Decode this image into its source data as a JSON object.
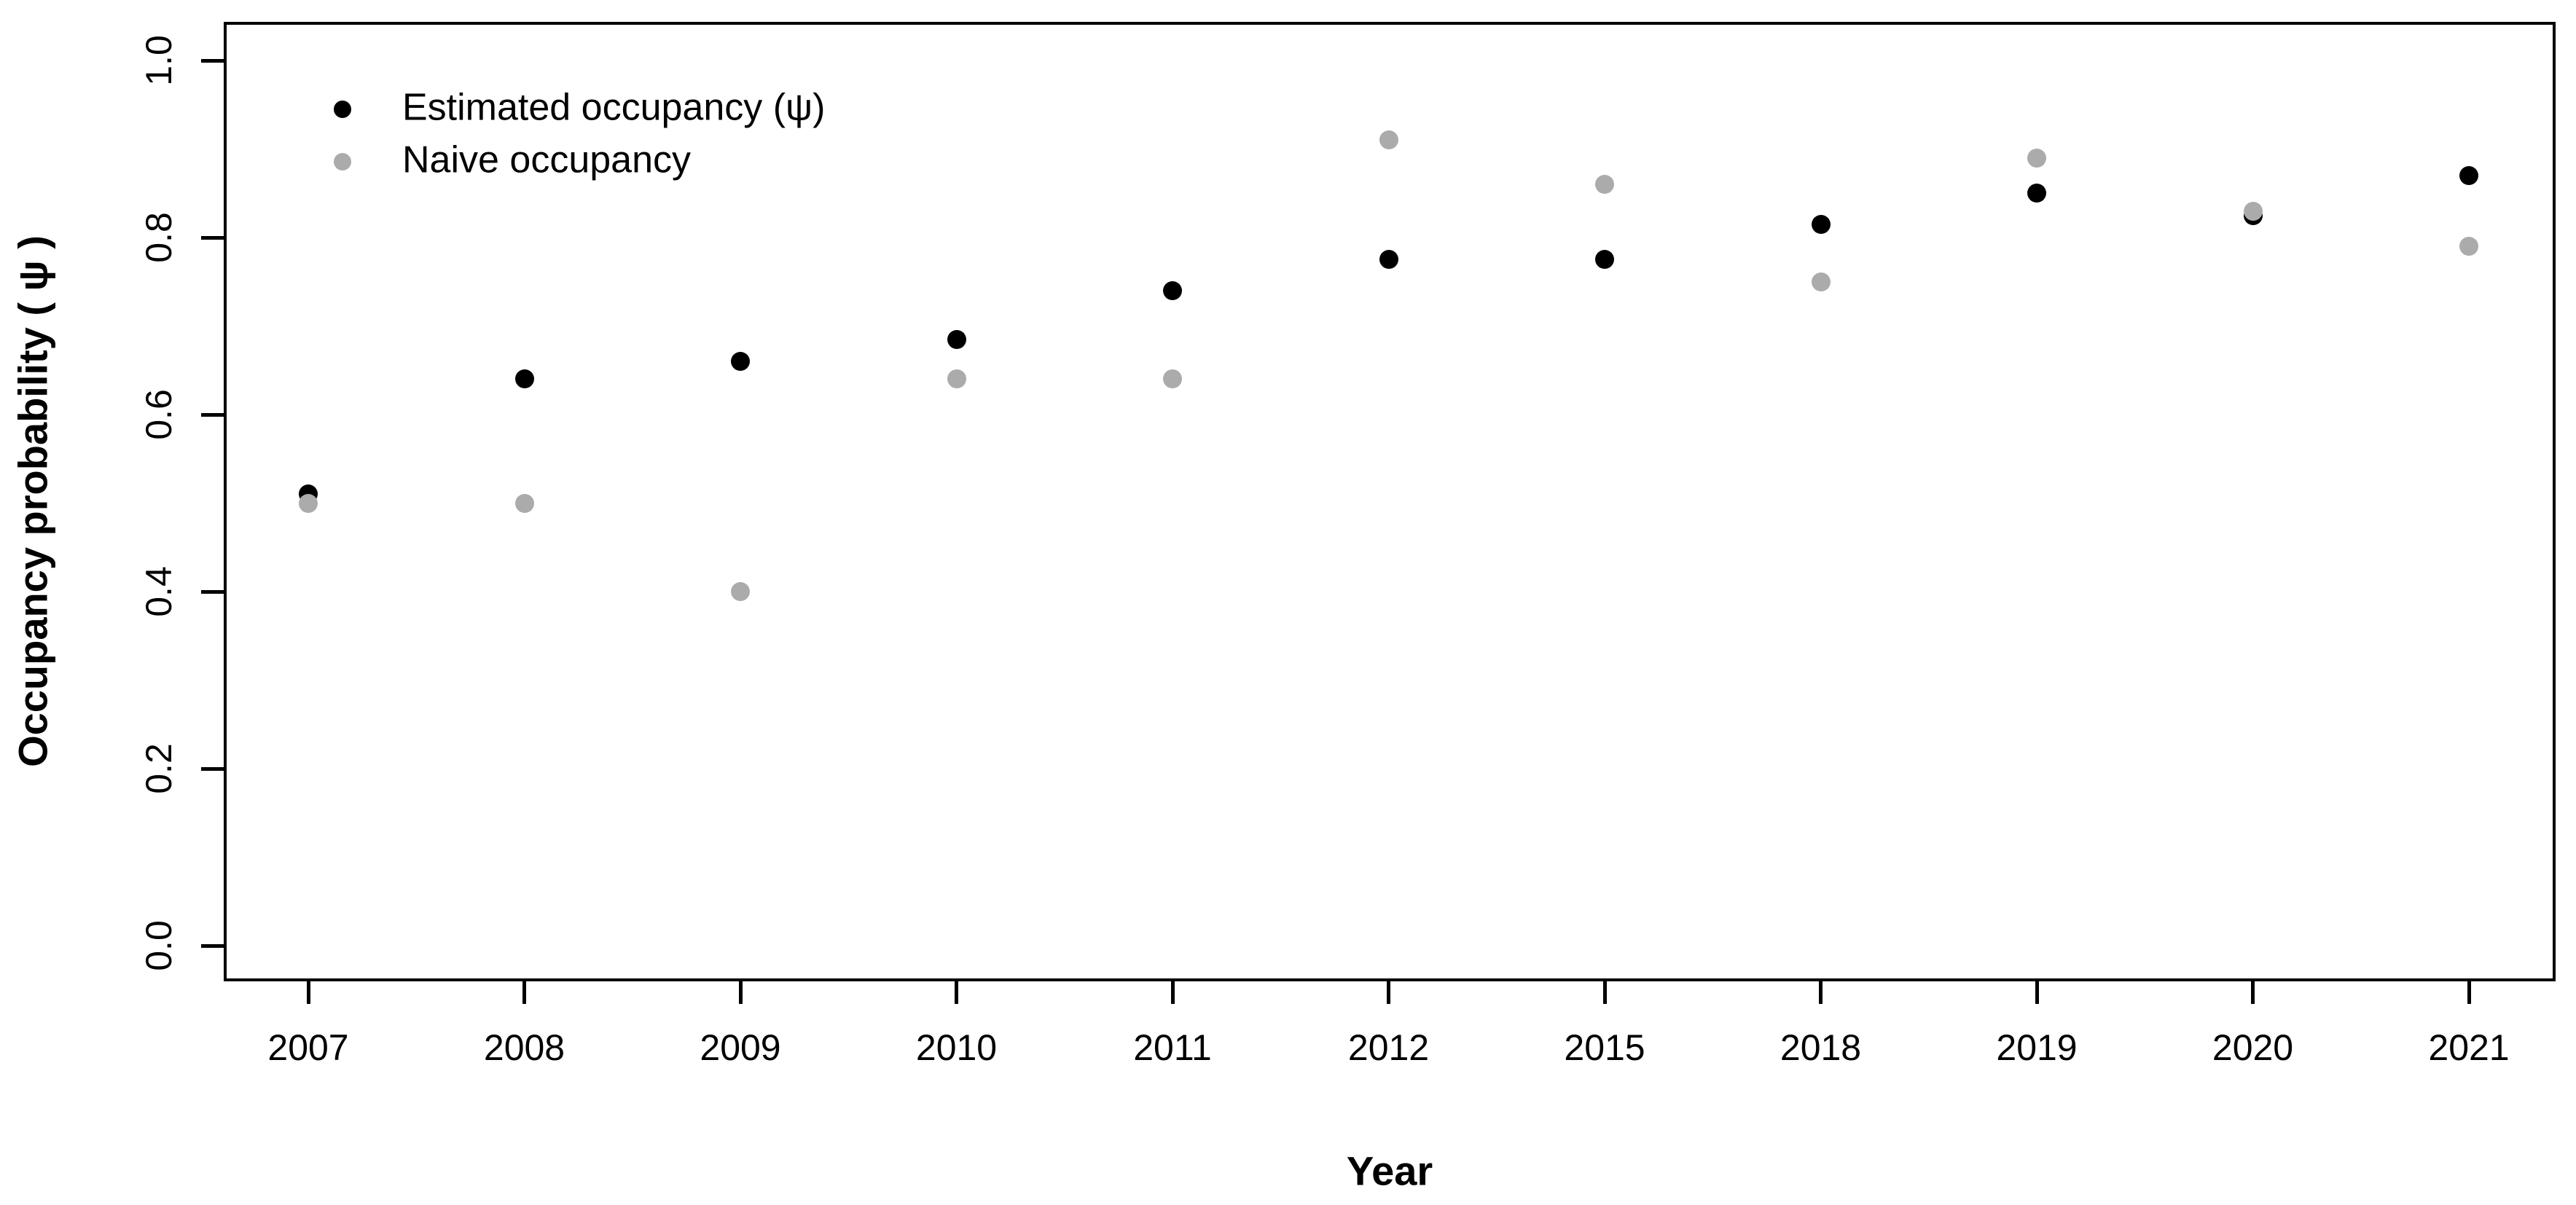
{
  "chart_data": {
    "type": "scatter",
    "title": "",
    "xlabel": "Year",
    "ylabel": "Occupancy probability ( ψ )",
    "categories": [
      "2007",
      "2008",
      "2009",
      "2010",
      "2011",
      "2012",
      "2015",
      "2018",
      "2019",
      "2020",
      "2021"
    ],
    "series": [
      {
        "name": "Estimated occupancy (ψ)",
        "color": "#000000",
        "values": [
          0.51,
          0.64,
          0.66,
          0.685,
          0.74,
          0.775,
          0.775,
          0.815,
          0.85,
          0.825,
          0.87
        ]
      },
      {
        "name": "Naive occupancy",
        "color": "#ababab",
        "values": [
          0.5,
          0.5,
          0.4,
          0.64,
          0.64,
          0.91,
          0.86,
          0.75,
          0.89,
          0.83,
          0.79
        ]
      }
    ],
    "ylim": [
      0.0,
      1.0
    ],
    "yticks": [
      0.0,
      0.2,
      0.4,
      0.6,
      0.8,
      1.0
    ],
    "ytick_labels": [
      "0.0",
      "0.2",
      "0.4",
      "0.6",
      "0.8",
      "1.0"
    ],
    "grid": false,
    "legend_position": "top-left",
    "frame_color": "#000000",
    "background_color": "#ffffff"
  }
}
